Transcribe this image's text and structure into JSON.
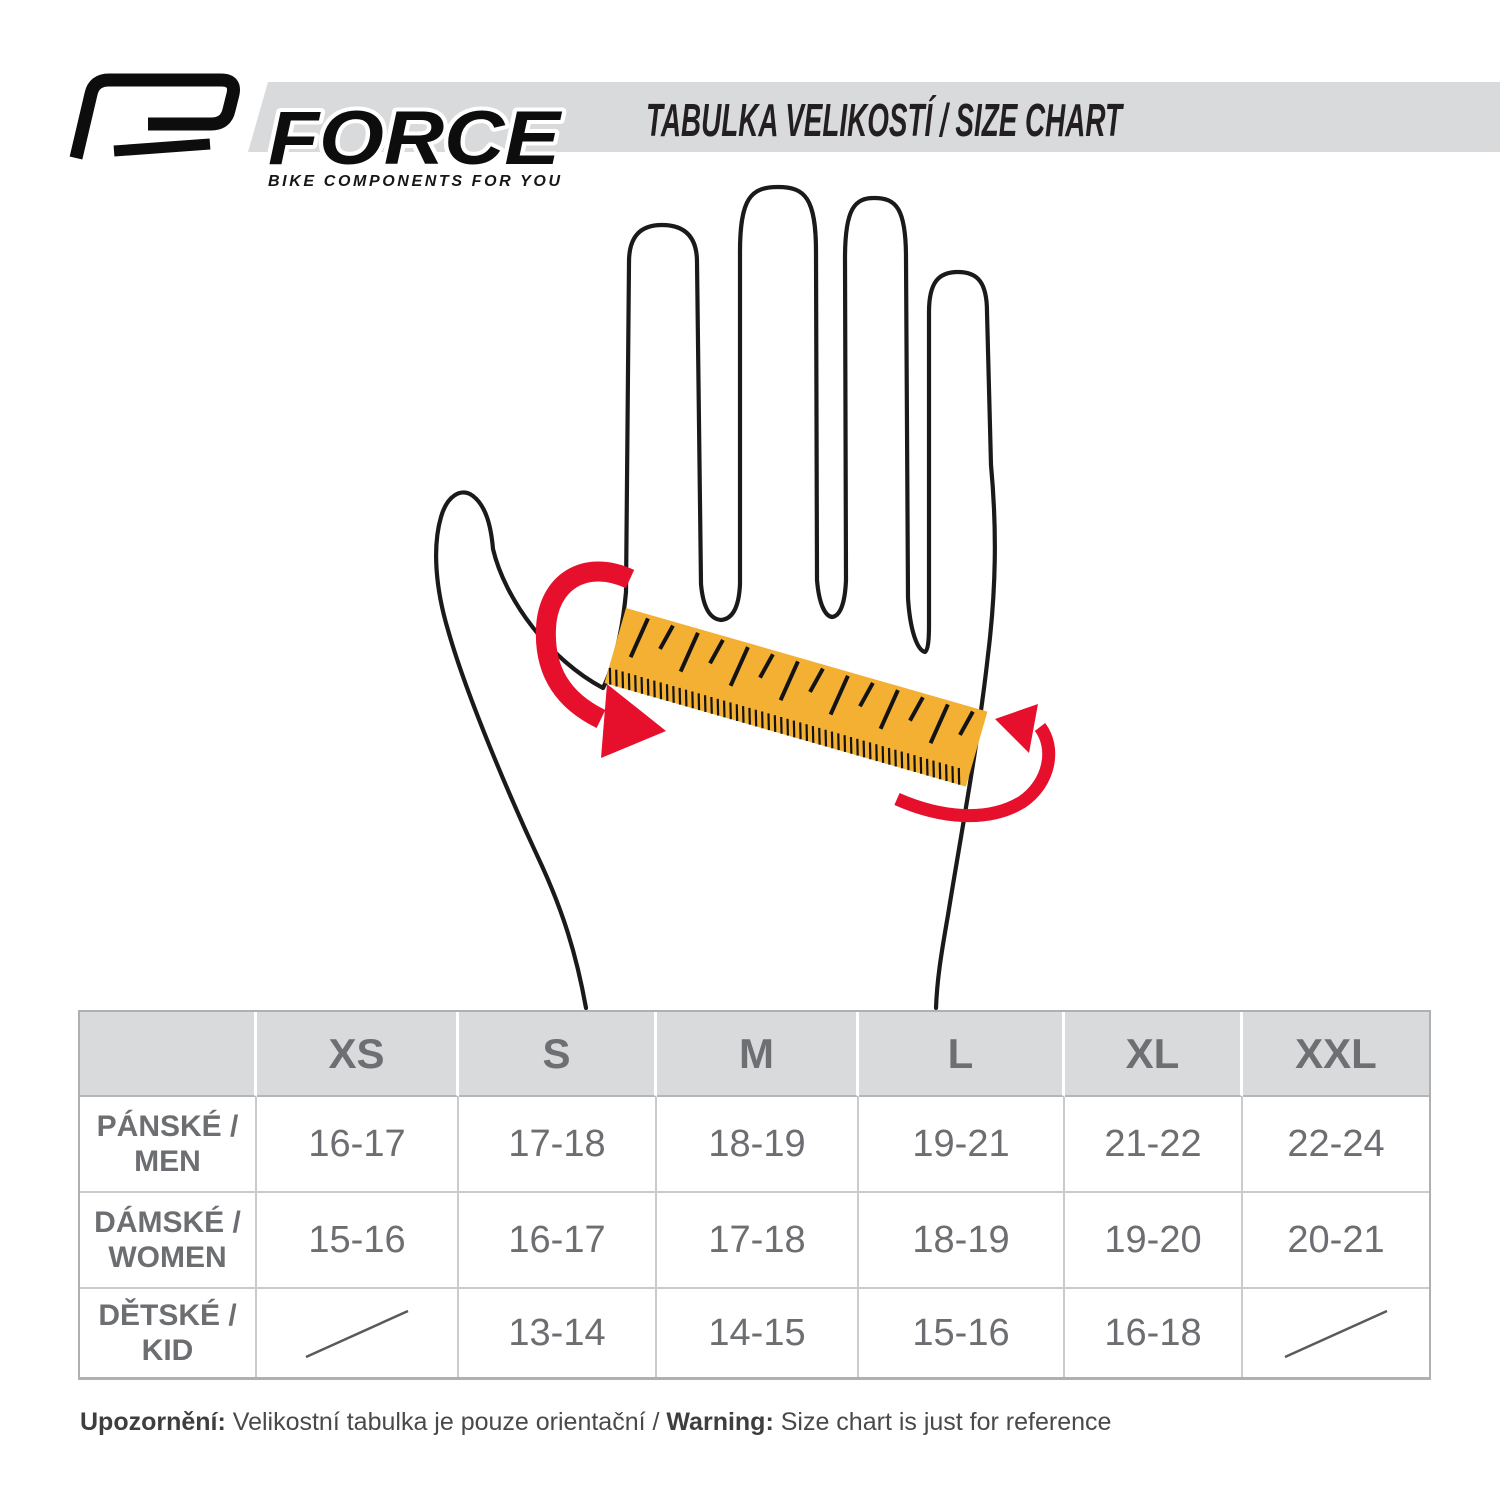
{
  "brand": {
    "name": "FORCE",
    "tagline": "BIKE COMPONENTS FOR YOU"
  },
  "header": {
    "title": "TABULKA VELIKOSTÍ / SIZE CHART"
  },
  "illustration": {
    "hand_icon": "left-hand-palm-outline",
    "ruler_icon": "orange-measuring-ruler",
    "arrows_icon": "red-palm-circumference-arrows"
  },
  "size_table": {
    "columns": [
      "XS",
      "S",
      "M",
      "L",
      "XL",
      "XXL"
    ],
    "rows": [
      {
        "label_cs": "PÁNSKÉ /",
        "label_en": "MEN",
        "values": [
          "16-17",
          "17-18",
          "18-19",
          "19-21",
          "21-22",
          "22-24"
        ]
      },
      {
        "label_cs": "DÁMSKÉ /",
        "label_en": "WOMEN",
        "values": [
          "15-16",
          "16-17",
          "17-18",
          "18-19",
          "19-20",
          "20-21"
        ]
      },
      {
        "label_cs": "DĚTSKÉ /",
        "label_en": "KID",
        "values": [
          null,
          "13-14",
          "14-15",
          "15-16",
          "16-18",
          null
        ]
      }
    ]
  },
  "footnote": {
    "cs_label": "Upozornění:",
    "cs_text": " Velikostní tabulka je pouze orientační / ",
    "en_label": "Warning:",
    "en_text": " Size chart is just for reference"
  },
  "colors": {
    "accent_red": "#e6102d",
    "ruler_orange": "#f3b033",
    "band_gray": "#d8dadb",
    "table_line": "#c9cbcd",
    "text_gray": "#6d6e71",
    "ink": "#231f20"
  }
}
